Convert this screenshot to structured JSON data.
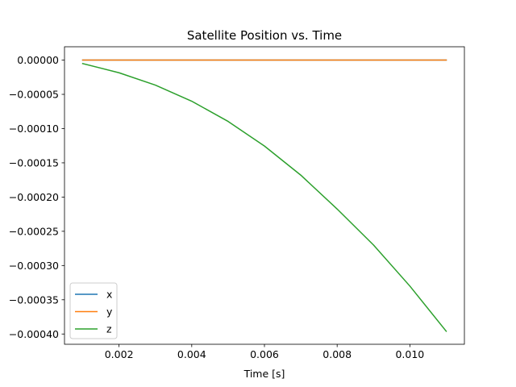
{
  "chart_data": {
    "type": "line",
    "title": "Satellite Position vs. Time",
    "xlabel": "Time [s]",
    "ylabel": "",
    "xlim": [
      0.0005,
      0.0115
    ],
    "ylim": [
      -0.000415,
      1.95e-05
    ],
    "x_ticks": [
      0.002,
      0.004,
      0.006,
      0.008,
      0.01
    ],
    "x_tick_labels": [
      "0.002",
      "0.004",
      "0.006",
      "0.008",
      "0.010"
    ],
    "y_ticks": [
      0.0,
      -5e-05,
      -0.0001,
      -0.00015,
      -0.0002,
      -0.00025,
      -0.0003,
      -0.00035,
      -0.0004
    ],
    "y_tick_labels": [
      "0.00000",
      "−0.00005",
      "−0.00010",
      "−0.00015",
      "−0.00020",
      "−0.00025",
      "−0.00030",
      "−0.00035",
      "−0.00040"
    ],
    "grid": false,
    "legend_position": "lower-left",
    "x": [
      0.001,
      0.002,
      0.003,
      0.004,
      0.005,
      0.006,
      0.007,
      0.008,
      0.009,
      0.01,
      0.011
    ],
    "series": [
      {
        "name": "x",
        "color": "#1f77b4",
        "values": [
          0,
          0,
          0,
          0,
          0,
          0,
          0,
          0,
          0,
          0,
          0
        ]
      },
      {
        "name": "y",
        "color": "#ff7f0e",
        "values": [
          0,
          0,
          0,
          0,
          0,
          0,
          0,
          0,
          0,
          0,
          0
        ]
      },
      {
        "name": "z",
        "color": "#2ca02c",
        "values": [
          -5e-06,
          -1.85e-05,
          -3.65e-05,
          -6e-05,
          -8.95e-05,
          -0.0001255,
          -0.000168,
          -0.0002175,
          -0.00027,
          -0.00033,
          -0.000396
        ]
      }
    ]
  }
}
